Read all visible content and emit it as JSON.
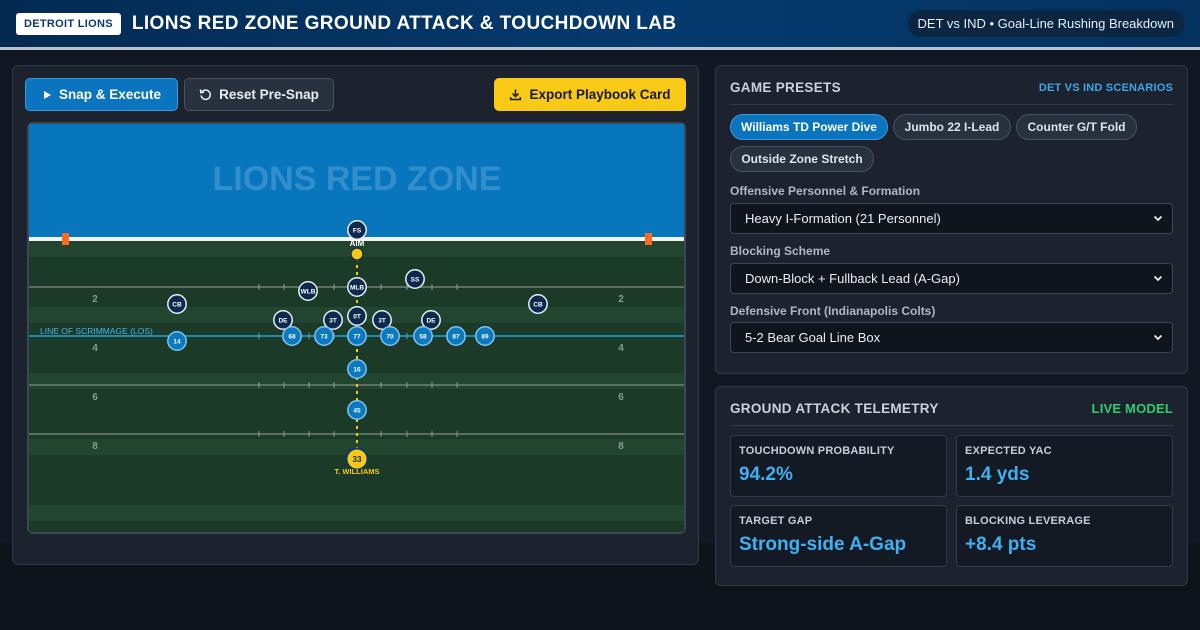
{
  "header": {
    "badge": "DETROIT LIONS",
    "title": "LIONS RED ZONE GROUND ATTACK & TOUCHDOWN LAB",
    "matchup": "DET vs IND • Goal-Line Rushing Breakdown"
  },
  "toolbar": {
    "snap_label": "Snap & Execute",
    "reset_label": "Reset Pre-Snap",
    "export_label": "Export Playbook Card"
  },
  "field": {
    "endzone_text": "LIONS RED ZONE",
    "los_label": "LINE OF SCRIMMAGE (LOS)",
    "yard_numbers": [
      "2",
      "4",
      "6",
      "8"
    ],
    "aim_label": "AIM",
    "ball_carrier_name": "T. WILLIAMS",
    "colors": {
      "endzone": "#0876bd",
      "turf_light": "#21452f",
      "turf_dark": "#1b3a27",
      "offense": "#0b79c0",
      "defense": "#0b2a4d",
      "ball_carrier": "#f8c915",
      "route": "#f8c915"
    },
    "defense": [
      {
        "label": "FS"
      },
      {
        "label": "SS"
      },
      {
        "label": "WLB"
      },
      {
        "label": "MLB"
      },
      {
        "label": "CB"
      },
      {
        "label": "CB"
      },
      {
        "label": "DE"
      },
      {
        "label": "3T"
      },
      {
        "label": "0T"
      },
      {
        "label": "3T"
      },
      {
        "label": "DE"
      }
    ],
    "offense": [
      {
        "label": "14"
      },
      {
        "label": "68"
      },
      {
        "label": "73"
      },
      {
        "label": "77"
      },
      {
        "label": "70"
      },
      {
        "label": "58"
      },
      {
        "label": "87"
      },
      {
        "label": "89"
      },
      {
        "label": "16"
      },
      {
        "label": "45"
      }
    ],
    "ball_carrier": {
      "label": "33"
    }
  },
  "presets": {
    "title": "GAME PRESETS",
    "link": "DET VS IND SCENARIOS",
    "chips": [
      {
        "label": "Williams TD Power Dive",
        "active": true
      },
      {
        "label": "Jumbo 22 I-Lead",
        "active": false
      },
      {
        "label": "Counter G/T Fold",
        "active": false
      },
      {
        "label": "Outside Zone Stretch",
        "active": false
      }
    ],
    "personnel_label": "Offensive Personnel & Formation",
    "personnel_value": "Heavy I-Formation (21 Personnel)",
    "scheme_label": "Blocking Scheme",
    "scheme_value": "Down-Block + Fullback Lead (A-Gap)",
    "front_label": "Defensive Front (Indianapolis Colts)",
    "front_value": "5-2 Bear Goal Line Box"
  },
  "telemetry": {
    "title": "GROUND ATTACK TELEMETRY",
    "live": "LIVE MODEL",
    "metrics": [
      {
        "label": "TOUCHDOWN PROBABILITY",
        "value": "94.2%"
      },
      {
        "label": "EXPECTED YAC",
        "value": "1.4 yds"
      },
      {
        "label": "TARGET GAP",
        "value": "Strong-side A-Gap"
      },
      {
        "label": "BLOCKING LEVERAGE",
        "value": "+8.4 pts"
      }
    ]
  }
}
